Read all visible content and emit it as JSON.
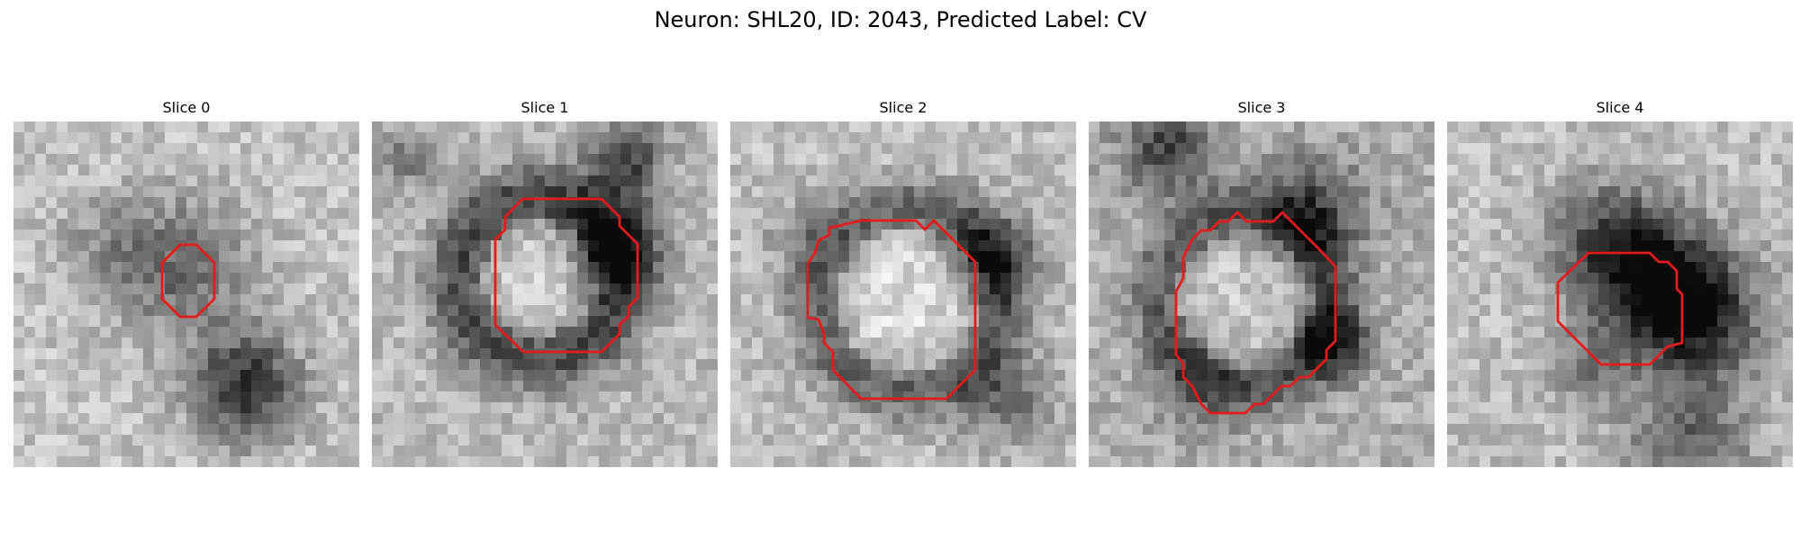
{
  "figure": {
    "title": "Neuron: SHL20, ID: 2043, Predicted Label: CV"
  },
  "contour_color": "#e41a1c",
  "panels": [
    {
      "title": "Slice 0"
    },
    {
      "title": "Slice 1"
    },
    {
      "title": "Slice 2"
    },
    {
      "title": "Slice 3"
    },
    {
      "title": "Slice 4"
    }
  ]
}
